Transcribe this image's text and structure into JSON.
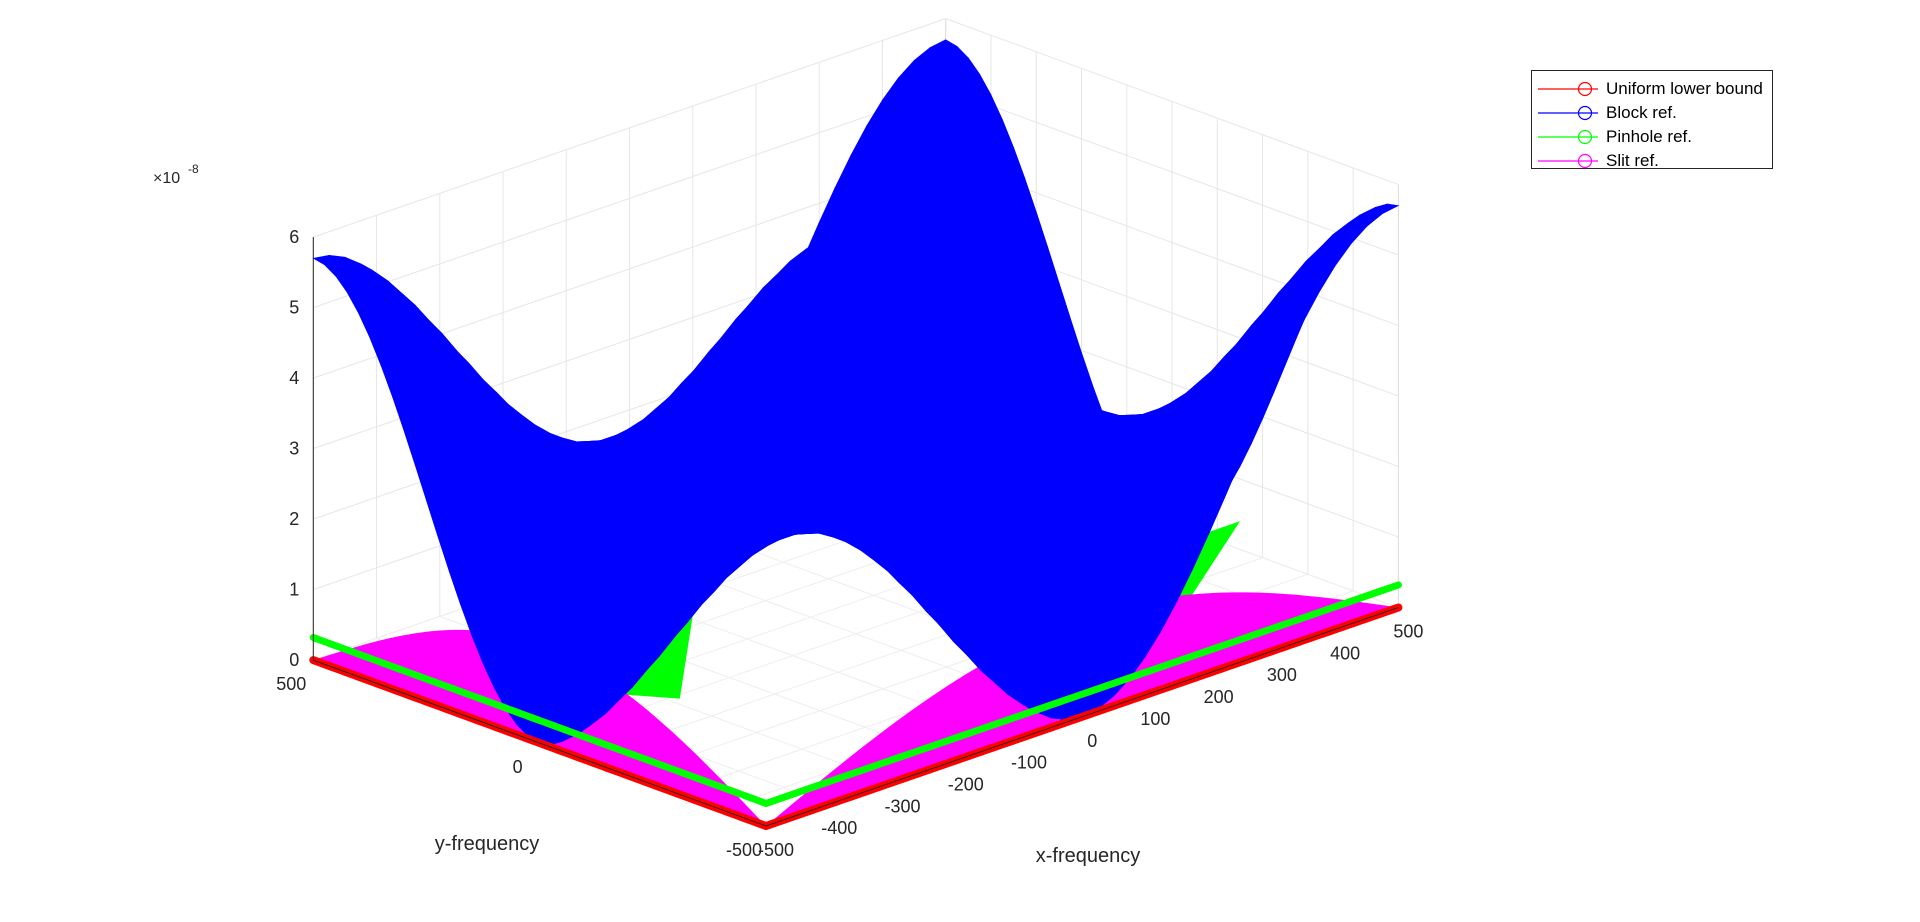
{
  "chart_data": {
    "type": "3d-stem",
    "view": "3d",
    "z_exponent_label": "×10",
    "z_exponent_value": "-8",
    "xlabel": "x-frequency",
    "ylabel": "y-frequency",
    "zlabel": "",
    "x_ticks": [
      "-500",
      "-400",
      "-300",
      "-200",
      "-100",
      "0",
      "100",
      "200",
      "300",
      "400",
      "500"
    ],
    "y_ticks": [
      "-500",
      "0",
      "500"
    ],
    "z_ticks": [
      "0",
      "1",
      "2",
      "3",
      "4",
      "5",
      "6"
    ],
    "xlim": [
      -500,
      500
    ],
    "ylim": [
      -500,
      500
    ],
    "zlim": [
      0,
      6e-08
    ],
    "grid": true,
    "legend_position": "top-right",
    "series": [
      {
        "name": "Uniform lower bound",
        "color": "#ff0000",
        "z_at_corner_x-500_y500": 0.0,
        "z_at_center": 0.0,
        "z_at_corner_x500_y-500": 0.0
      },
      {
        "name": "Block ref.",
        "color": "#0000ff",
        "z_at_center": 5.7e-08,
        "z_at_corner_x-500_y500": 5.7e-08,
        "z_at_corner_x500_y-500": 5.7e-08,
        "z_min": 0.0
      },
      {
        "name": "Pinhole ref.",
        "color": "#00ff00",
        "z_edge": 3.2e-09,
        "z_interior": 4e-09
      },
      {
        "name": "Slit ref.",
        "color": "#ff00ff",
        "z_edge_max": 1.4e-08,
        "z_plateau": 1.4e-08
      }
    ]
  }
}
